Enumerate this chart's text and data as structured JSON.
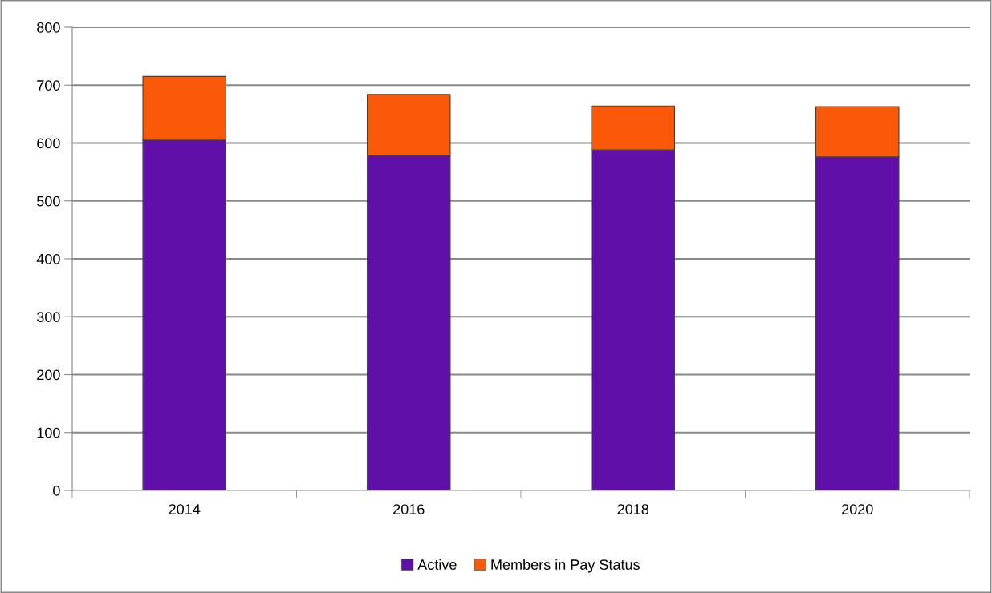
{
  "chart_data": {
    "type": "bar",
    "stacked": true,
    "categories": [
      "2014",
      "2016",
      "2018",
      "2020"
    ],
    "series": [
      {
        "name": "Active",
        "color": "#6010a8",
        "values": [
          605,
          578,
          588,
          576
        ]
      },
      {
        "name": "Members in Pay Status",
        "color": "#fa5a08",
        "values": [
          110,
          106,
          76,
          87
        ]
      }
    ],
    "ylim": [
      0,
      800
    ],
    "yticks": [
      0,
      100,
      200,
      300,
      400,
      500,
      600,
      700,
      800
    ],
    "grid": "y",
    "legend": "bottom"
  }
}
